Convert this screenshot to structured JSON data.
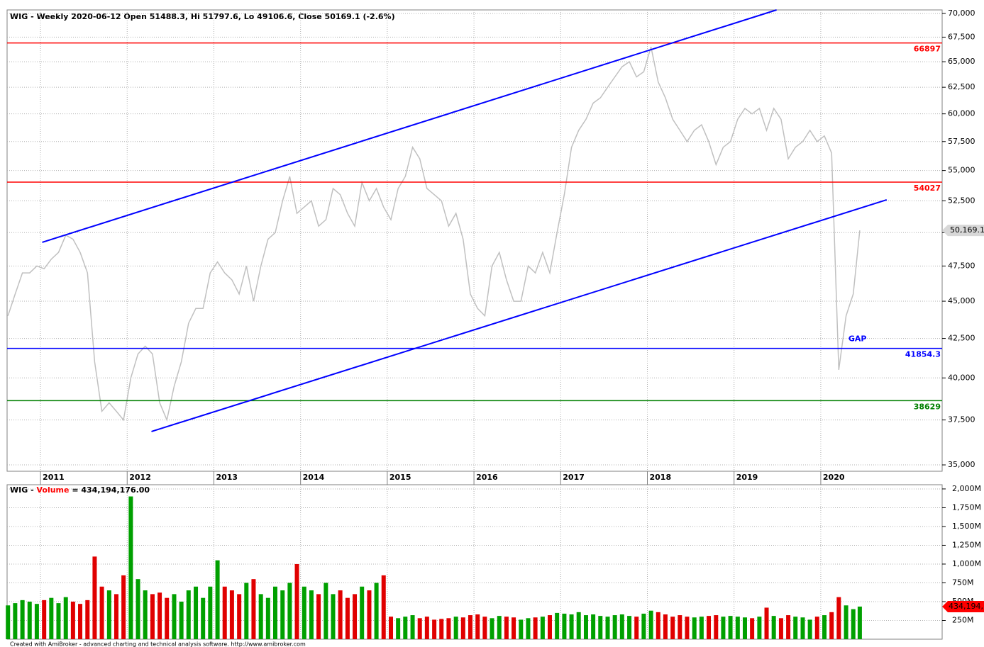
{
  "chart_data": [
    {
      "type": "line",
      "title": "WIG - Weekly 2020-06-12 Open 51488.3, Hi 51797.6, Lo 49106.6, Close 50169.1 (-2.6%)",
      "x": [
        2010.625,
        2010.708,
        2010.792,
        2010.875,
        2010.958,
        2011.042,
        2011.125,
        2011.208,
        2011.292,
        2011.375,
        2011.458,
        2011.542,
        2011.625,
        2011.708,
        2011.792,
        2011.875,
        2011.958,
        2012.042,
        2012.125,
        2012.208,
        2012.292,
        2012.375,
        2012.458,
        2012.542,
        2012.625,
        2012.708,
        2012.792,
        2012.875,
        2012.958,
        2013.042,
        2013.125,
        2013.208,
        2013.292,
        2013.375,
        2013.458,
        2013.542,
        2013.625,
        2013.708,
        2013.792,
        2013.875,
        2013.958,
        2014.042,
        2014.125,
        2014.208,
        2014.292,
        2014.375,
        2014.458,
        2014.542,
        2014.625,
        2014.708,
        2014.792,
        2014.875,
        2014.958,
        2015.042,
        2015.125,
        2015.208,
        2015.292,
        2015.375,
        2015.458,
        2015.542,
        2015.625,
        2015.708,
        2015.792,
        2015.875,
        2015.958,
        2016.042,
        2016.125,
        2016.208,
        2016.292,
        2016.375,
        2016.458,
        2016.542,
        2016.625,
        2016.708,
        2016.792,
        2016.875,
        2016.958,
        2017.042,
        2017.125,
        2017.208,
        2017.292,
        2017.375,
        2017.458,
        2017.542,
        2017.625,
        2017.708,
        2017.792,
        2017.875,
        2017.958,
        2018.042,
        2018.125,
        2018.208,
        2018.292,
        2018.375,
        2018.458,
        2018.542,
        2018.625,
        2018.708,
        2018.792,
        2018.875,
        2018.958,
        2019.042,
        2019.125,
        2019.208,
        2019.292,
        2019.375,
        2019.458,
        2019.542,
        2019.625,
        2019.708,
        2019.792,
        2019.875,
        2019.958,
        2020.042,
        2020.125,
        2020.208,
        2020.292,
        2020.375,
        2020.45
      ],
      "series": [
        {
          "color": "#c0c0c0",
          "values": [
            44000,
            45500,
            47000,
            47000,
            47500,
            47300,
            48000,
            48500,
            49800,
            49500,
            48500,
            47000,
            41000,
            38000,
            38500,
            38000,
            37500,
            40000,
            41500,
            42000,
            41500,
            38500,
            37500,
            39500,
            41000,
            43500,
            44500,
            44500,
            47000,
            47800,
            47000,
            46500,
            45500,
            47500,
            45000,
            47500,
            49500,
            50000,
            52500,
            54500,
            51500,
            52000,
            52500,
            50500,
            51000,
            53500,
            53000,
            51500,
            50500,
            54000,
            52500,
            53500,
            52000,
            51000,
            53500,
            54500,
            57000,
            56000,
            53500,
            53000,
            52500,
            50500,
            51500,
            49500,
            45500,
            44500,
            44000,
            47500,
            48500,
            46500,
            45000,
            45000,
            47500,
            47000,
            48500,
            47000,
            50000,
            53000,
            57000,
            58500,
            59500,
            61000,
            61500,
            62500,
            63500,
            64500,
            65000,
            63500,
            64000,
            66500,
            63000,
            61500,
            59500,
            58500,
            57500,
            58500,
            59000,
            57500,
            55500,
            57000,
            57500,
            59500,
            60500,
            60000,
            60500,
            58500,
            60500,
            59500,
            56000,
            57000,
            57500,
            58500,
            57500,
            58000,
            56500,
            40500,
            44000,
            45500,
            50169.1
          ]
        }
      ],
      "xlim": [
        2010.615,
        2021.4
      ],
      "xticks": [
        2011,
        2012,
        2013,
        2014,
        2015,
        2016,
        2017,
        2018,
        2019,
        2020
      ],
      "ylim": [
        34660,
        70380
      ],
      "log_scale": true,
      "grid": true,
      "yticks": [
        {
          "value": 35000,
          "label": "35,000"
        },
        {
          "value": 37500,
          "label": "37,500"
        },
        {
          "value": 40000,
          "label": "40,000"
        },
        {
          "value": 42500,
          "label": "42,500"
        },
        {
          "value": 45000,
          "label": "45,000"
        },
        {
          "value": 47500,
          "label": "47,500"
        },
        {
          "value": 50000,
          "label": "50,000"
        },
        {
          "value": 52500,
          "label": "52,500"
        },
        {
          "value": 55000,
          "label": "55,000"
        },
        {
          "value": 57500,
          "label": "57,500"
        },
        {
          "value": 60000,
          "label": "60,000"
        },
        {
          "value": 62500,
          "label": "62,500"
        },
        {
          "value": 65000,
          "label": "65,000"
        },
        {
          "value": 67500,
          "label": "67,500"
        },
        {
          "value": 70000,
          "label": "70,000"
        }
      ],
      "levels": [
        {
          "value": 66897,
          "color": "#ff0000"
        },
        {
          "value": 54027,
          "color": "#ff0000"
        },
        {
          "value": 41854.3,
          "color": "#0000ff"
        },
        {
          "value": 38629,
          "color": "#008000"
        }
      ],
      "trendlines": [
        {
          "x": [
            2011.02,
            2019.49
          ],
          "y": [
            49260,
            70380
          ],
          "color": "#0000ff"
        },
        {
          "x": [
            2012.28,
            2020.76
          ],
          "y": [
            36840,
            52580
          ],
          "color": "#0000ff"
        }
      ],
      "annotation": {
        "text": "GAP",
        "color": "#0000ff"
      },
      "last_value": {
        "value": 50169.1,
        "label": "50,169.1"
      }
    },
    {
      "type": "bar",
      "title_parts": [
        "WIG - ",
        "Volume",
        " = 434,194,176.00"
      ],
      "title_colors": [
        "#000000",
        "#ff0000",
        "#000000"
      ],
      "values": [
        450,
        480,
        520,
        500,
        470,
        520,
        550,
        480,
        560,
        500,
        470,
        520,
        1100,
        700,
        650,
        600,
        850,
        1900,
        800,
        650,
        600,
        620,
        550,
        600,
        500,
        650,
        700,
        550,
        700,
        1050,
        700,
        650,
        600,
        750,
        800,
        600,
        550,
        700,
        650,
        750,
        1000,
        700,
        650,
        600,
        750,
        600,
        650,
        550,
        600,
        700,
        650,
        750,
        850,
        300,
        280,
        300,
        320,
        280,
        300,
        260,
        270,
        280,
        300,
        290,
        320,
        330,
        300,
        280,
        310,
        300,
        290,
        260,
        280,
        290,
        300,
        320,
        350,
        340,
        330,
        360,
        320,
        330,
        310,
        300,
        320,
        330,
        310,
        300,
        340,
        380,
        360,
        330,
        300,
        320,
        300,
        290,
        300,
        310,
        320,
        300,
        310,
        300,
        290,
        280,
        300,
        420,
        310,
        280,
        320,
        300,
        290,
        260,
        300,
        320,
        360,
        560,
        450,
        400,
        434.194176
      ],
      "up_color": "#00a000",
      "down_color": "#e00000",
      "ylim": [
        0,
        2056
      ],
      "grid": true,
      "yticks": [
        {
          "value": 250,
          "label": "250M"
        },
        {
          "value": 500,
          "label": "500M"
        },
        {
          "value": 750,
          "label": "750M"
        },
        {
          "value": 1000,
          "label": "1,000M"
        },
        {
          "value": 1250,
          "label": "1,250M"
        },
        {
          "value": 1500,
          "label": "1,500M"
        },
        {
          "value": 1750,
          "label": "1,750M"
        },
        {
          "value": 2000,
          "label": "2,000M"
        }
      ],
      "last_label": "434,194,",
      "last_color": "#ff0000"
    }
  ],
  "footer": "Created with AmiBroker - advanced charting and technical analysis software. http://www.amibroker.com"
}
